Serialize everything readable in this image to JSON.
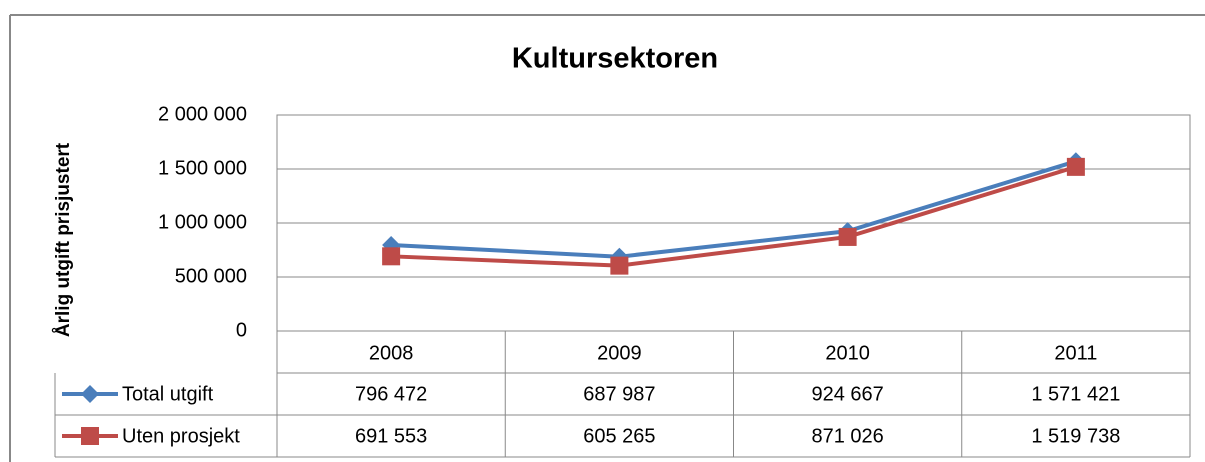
{
  "chart_data": {
    "type": "line",
    "title": "Kultursektoren",
    "y_label": "Årlig utgift prisjustert",
    "categories": [
      "2008",
      "2009",
      "2010",
      "2011"
    ],
    "series": [
      {
        "name": "Total utgift",
        "color": "#4a7ebb",
        "marker": "diamond",
        "values": [
          796472,
          687987,
          924667,
          1571421
        ],
        "value_labels": [
          "796 472",
          "687 987",
          "924 667",
          "1 571 421"
        ]
      },
      {
        "name": "Uten prosjekt",
        "color": "#be4b48",
        "marker": "square",
        "values": [
          691553,
          605265,
          871026,
          1519738
        ],
        "value_labels": [
          "691 553",
          "605 265",
          "871 026",
          "1 519 738"
        ]
      }
    ],
    "ylim": [
      0,
      2000000
    ],
    "yticks": [
      0,
      {
        "value": 500000,
        "label": "500 000"
      },
      {
        "value": 1000000,
        "label": "1 000 000"
      },
      {
        "value": 1500000,
        "label": "1 500 000"
      },
      {
        "value": 2000000,
        "label": "2 000 000"
      }
    ],
    "grid": true
  }
}
